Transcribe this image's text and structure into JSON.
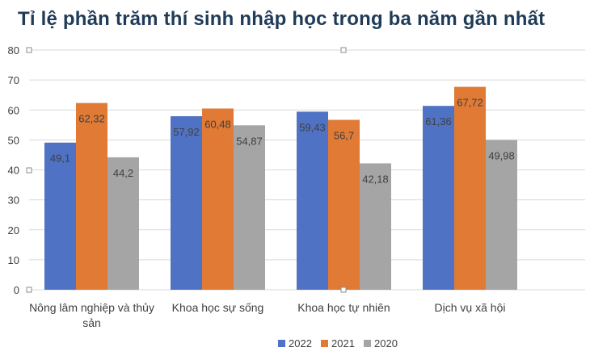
{
  "chart_data": {
    "type": "bar",
    "title": "Tỉ lệ phần trăm thí sinh nhập học trong ba năm gần nhất",
    "categories": [
      "Nông lâm nghiệp và thủy sản",
      "Khoa học sự sống",
      "Khoa học tự nhiên",
      "Dịch vụ xã hội"
    ],
    "category_lines": [
      [
        "Nông lâm nghiệp và thủy",
        "sản"
      ],
      [
        "Khoa học sự sống"
      ],
      [
        "Khoa học tự nhiên"
      ],
      [
        "Dịch vụ xã hội"
      ]
    ],
    "series": [
      {
        "name": "2022",
        "color": "#4f72c4",
        "values": [
          49.1,
          57.92,
          59.43,
          61.36
        ],
        "labels": [
          "49,1",
          "57,92",
          "59,43",
          "61,36"
        ]
      },
      {
        "name": "2021",
        "color": "#e07a35",
        "values": [
          62.32,
          60.48,
          56.7,
          67.72
        ],
        "labels": [
          "62,32",
          "60,48",
          "56,7",
          "67,72"
        ]
      },
      {
        "name": "2020",
        "color": "#a5a5a5",
        "values": [
          44.2,
          54.87,
          42.18,
          49.98
        ],
        "labels": [
          "44,2",
          "54,87",
          "42,18",
          "49,98"
        ]
      }
    ],
    "yticks": [
      0,
      10,
      20,
      30,
      40,
      50,
      60,
      70,
      80
    ],
    "ylim": [
      0,
      80
    ],
    "grid": true,
    "legend": "bottom",
    "xlabel": "",
    "ylabel": ""
  }
}
